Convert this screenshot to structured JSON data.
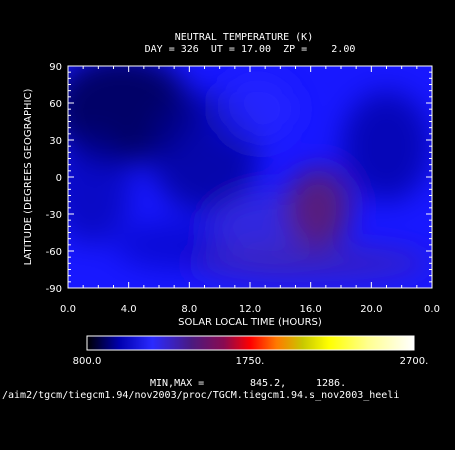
{
  "chart_data": {
    "type": "heatmap",
    "title": "NEUTRAL TEMPERATURE (K)",
    "subtitle": "DAY = 326  UT = 17.00  ZP =    2.00",
    "xlabel": "SOLAR LOCAL TIME (HOURS)",
    "ylabel": "LATITUDE (DEGREES GEOGRAPHIC)",
    "x_ticks": [
      "0.0",
      "4.0",
      "8.0",
      "12.0",
      "16.0",
      "20.0",
      "0.0"
    ],
    "y_ticks": [
      "90",
      "60",
      "30",
      "0",
      "-30",
      "-60",
      "-90"
    ],
    "xlim": [
      0,
      24
    ],
    "ylim": [
      -90,
      90
    ],
    "colorbar": {
      "min_label": "800.0",
      "mid_label": "1750.",
      "max_label": "2700.",
      "min": 800,
      "max": 2700
    },
    "minmax_label": "MIN,MAX =",
    "min_value": "845.2,",
    "max_value": "1286.",
    "file_path": "/aim2/tgcm/tiegcm1.94/nov2003/proc/TGCM.tiegcm1.94.s_nov2003_heeli",
    "field_features": [
      {
        "desc": "cold minimum",
        "lt": 3.5,
        "lat": 55,
        "value": 845
      },
      {
        "desc": "warm maximum",
        "lt": 16.5,
        "lat": -25,
        "value": 1286
      }
    ]
  }
}
